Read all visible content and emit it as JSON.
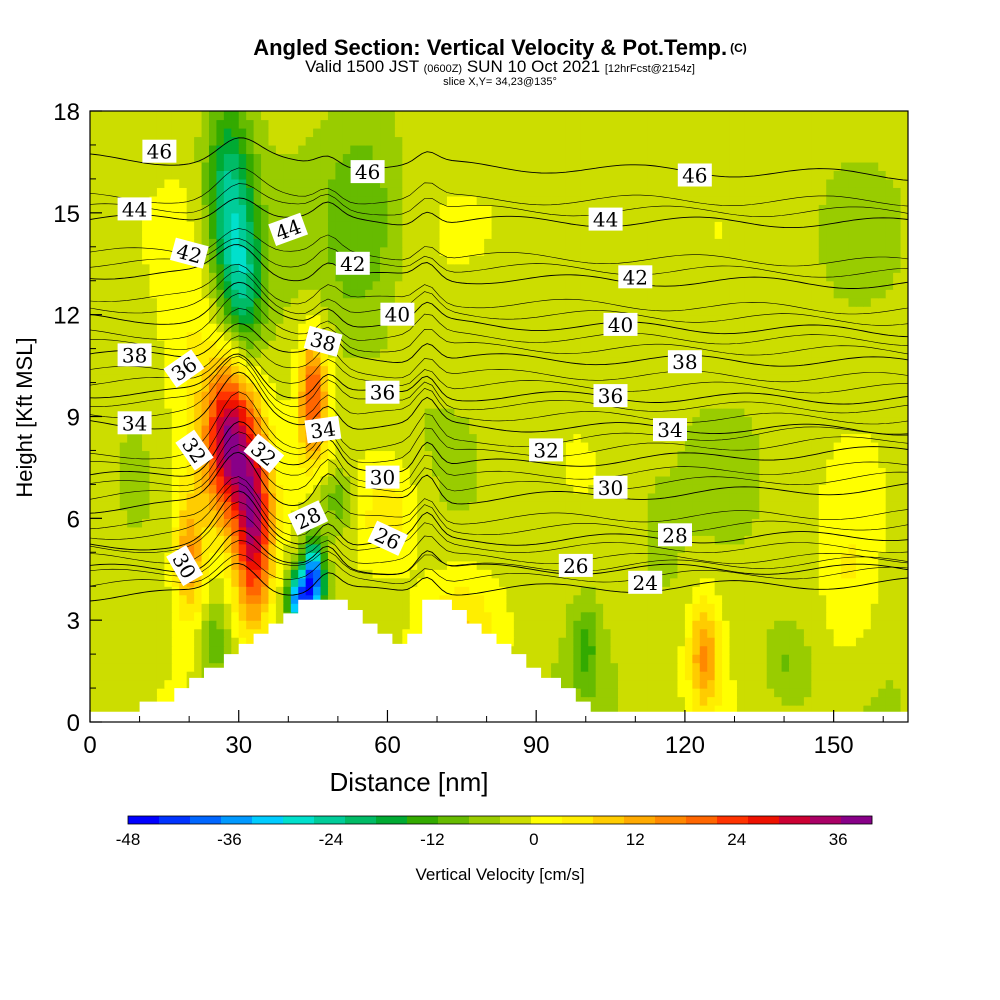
{
  "title": {
    "main": "Angled Section: Vertical Velocity & Pot.Temp.",
    "copyright": "(C)",
    "valid_prefix": "Valid 1500 JST",
    "zulu": "(0600Z)",
    "valid_date": "SUN 10 Oct 2021",
    "forecast": "[12hrFcst@2154z]",
    "slice": "slice X,Y= 34,23@135°"
  },
  "chart_data": {
    "type": "heatmap",
    "xlabel": "Distance [nm]",
    "ylabel": "Height [Kft MSL]",
    "xlim": [
      0,
      165
    ],
    "ylim": [
      0,
      18
    ],
    "xticks": [
      0,
      30,
      60,
      90,
      120,
      150
    ],
    "yticks": [
      0,
      3,
      6,
      9,
      12,
      15,
      18
    ],
    "colorbar": {
      "label": "Vertical Velocity [cm/s]",
      "min": -48,
      "max": 40,
      "step": 4,
      "tick_values": [
        -48,
        -36,
        -24,
        -12,
        0,
        12,
        24,
        36
      ],
      "colors": [
        "#0000ff",
        "#0033ff",
        "#0066ff",
        "#0099ff",
        "#00ccff",
        "#00e0cc",
        "#00cc99",
        "#00bb66",
        "#00aa33",
        "#33aa00",
        "#66bb00",
        "#99cc00",
        "#ccdd00",
        "#ffff00",
        "#ffee00",
        "#ffcc00",
        "#ffaa00",
        "#ff8800",
        "#ff6600",
        "#ff3300",
        "#ee1100",
        "#cc0033",
        "#aa0066",
        "#880088"
      ]
    },
    "terrain": [
      [
        0,
        0.3
      ],
      [
        10,
        0.3
      ],
      [
        10,
        0.6
      ],
      [
        17,
        0.6
      ],
      [
        17,
        1.0
      ],
      [
        20,
        1.0
      ],
      [
        20,
        1.3
      ],
      [
        23,
        1.3
      ],
      [
        23,
        1.6
      ],
      [
        27,
        1.6
      ],
      [
        27,
        2.0
      ],
      [
        30,
        2.0
      ],
      [
        30,
        2.3
      ],
      [
        33,
        2.3
      ],
      [
        33,
        2.6
      ],
      [
        36,
        2.6
      ],
      [
        36,
        2.9
      ],
      [
        39,
        2.9
      ],
      [
        39,
        3.2
      ],
      [
        42,
        3.2
      ],
      [
        42,
        3.6
      ],
      [
        52,
        3.6
      ],
      [
        52,
        3.3
      ],
      [
        55,
        3.3
      ],
      [
        55,
        2.9
      ],
      [
        58,
        2.9
      ],
      [
        58,
        2.6
      ],
      [
        61,
        2.6
      ],
      [
        61,
        2.3
      ],
      [
        64,
        2.3
      ],
      [
        64,
        2.6
      ],
      [
        67,
        2.6
      ],
      [
        67,
        3.6
      ],
      [
        73,
        3.6
      ],
      [
        73,
        3.3
      ],
      [
        76,
        3.3
      ],
      [
        76,
        2.9
      ],
      [
        79,
        2.9
      ],
      [
        79,
        2.6
      ],
      [
        82,
        2.6
      ],
      [
        82,
        2.3
      ],
      [
        85,
        2.3
      ],
      [
        85,
        2.0
      ],
      [
        88,
        2.0
      ],
      [
        88,
        1.6
      ],
      [
        91,
        1.6
      ],
      [
        91,
        1.3
      ],
      [
        95,
        1.3
      ],
      [
        95,
        1.0
      ],
      [
        98,
        1.0
      ],
      [
        98,
        0.6
      ],
      [
        101,
        0.6
      ],
      [
        101,
        0.3
      ],
      [
        165,
        0.3
      ]
    ],
    "isentropes": [
      {
        "theta": 24,
        "y0": 3.7,
        "y1": 4.1,
        "bump": 1.0,
        "label": "24",
        "lx": 112,
        "ly": 4.1
      },
      {
        "theta": 26,
        "y0": 4.5,
        "y1": 4.5,
        "bump": 1.2,
        "label": "26",
        "lx": 98,
        "ly": 4.6
      },
      {
        "theta": 28,
        "y0": 5.2,
        "y1": 5.5,
        "bump": 1.4,
        "label": "28",
        "lx": 118,
        "ly": 5.5
      },
      {
        "theta": 30,
        "y0": 6.3,
        "y1": 6.9,
        "bump": 1.6,
        "label": "30",
        "lx": 105,
        "ly": 6.9
      },
      {
        "theta": 32,
        "y0": 7.2,
        "y1": 8.0,
        "bump": 1.6,
        "label": "32",
        "lx": 92,
        "ly": 8.0
      },
      {
        "theta": 34,
        "y0": 8.8,
        "y1": 8.6,
        "bump": 1.4,
        "label": "34",
        "lx": 117,
        "ly": 8.6
      },
      {
        "theta": 36,
        "y0": 9.7,
        "y1": 9.5,
        "bump": 1.2,
        "label": "36",
        "lx": 105,
        "ly": 9.6
      },
      {
        "theta": 38,
        "y0": 10.8,
        "y1": 10.6,
        "bump": 1.1,
        "label": "38",
        "lx": 120,
        "ly": 10.6
      },
      {
        "theta": 40,
        "y0": 11.9,
        "y1": 11.5,
        "bump": 1.0,
        "label": "40",
        "lx": 107,
        "ly": 11.7
      },
      {
        "theta": 42,
        "y0": 13.2,
        "y1": 12.9,
        "bump": 0.9,
        "label": "42",
        "lx": 110,
        "ly": 13.1
      },
      {
        "theta": 44,
        "y0": 14.8,
        "y1": 14.7,
        "bump": 0.8,
        "label": "44",
        "lx": 104,
        "ly": 14.8
      },
      {
        "theta": 46,
        "y0": 16.6,
        "y1": 16.1,
        "bump": 0.6,
        "label": "46",
        "lx": 122,
        "ly": 16.1
      }
    ],
    "extra_labels": [
      {
        "text": "46",
        "x": 14,
        "y": 16.8,
        "rot": 0
      },
      {
        "text": "44",
        "x": 9,
        "y": 15.1,
        "rot": 0
      },
      {
        "text": "42",
        "x": 20,
        "y": 13.8,
        "rot": 15
      },
      {
        "text": "38",
        "x": 9,
        "y": 10.8,
        "rot": 0
      },
      {
        "text": "36",
        "x": 19,
        "y": 10.4,
        "rot": -35
      },
      {
        "text": "34",
        "x": 9,
        "y": 8.8,
        "rot": 0
      },
      {
        "text": "32",
        "x": 21,
        "y": 8.0,
        "rot": 55
      },
      {
        "text": "30",
        "x": 19,
        "y": 4.6,
        "rot": 60
      },
      {
        "text": "46",
        "x": 56,
        "y": 16.2,
        "rot": 0
      },
      {
        "text": "44",
        "x": 40,
        "y": 14.5,
        "rot": -20
      },
      {
        "text": "42",
        "x": 53,
        "y": 13.5,
        "rot": 0
      },
      {
        "text": "40",
        "x": 62,
        "y": 12.0,
        "rot": 0
      },
      {
        "text": "38",
        "x": 47,
        "y": 11.2,
        "rot": 15
      },
      {
        "text": "36",
        "x": 59,
        "y": 9.7,
        "rot": 0
      },
      {
        "text": "34",
        "x": 47,
        "y": 8.6,
        "rot": -8
      },
      {
        "text": "32",
        "x": 35,
        "y": 7.9,
        "rot": 40
      },
      {
        "text": "30",
        "x": 59,
        "y": 7.2,
        "rot": 0
      },
      {
        "text": "28",
        "x": 44,
        "y": 6.0,
        "rot": -25
      },
      {
        "text": "26",
        "x": 60,
        "y": 5.4,
        "rot": 25
      }
    ],
    "updrafts": [
      {
        "x": 28,
        "y": 8.3,
        "sx": 3.2,
        "sy": 1.6,
        "v": 40
      },
      {
        "x": 33,
        "y": 5.8,
        "sx": 2.6,
        "sy": 2.0,
        "v": 38
      },
      {
        "x": 20,
        "y": 4.8,
        "sx": 2.0,
        "sy": 1.2,
        "v": 16
      },
      {
        "x": 45,
        "y": 9.6,
        "sx": 2.0,
        "sy": 1.3,
        "v": 26
      },
      {
        "x": 21,
        "y": 8.8,
        "sx": 4.5,
        "sy": 3.5,
        "v": 8
      },
      {
        "x": 124,
        "y": 2.0,
        "sx": 2.2,
        "sy": 1.2,
        "v": 18
      },
      {
        "x": 60,
        "y": 6.2,
        "sx": 5.0,
        "sy": 1.2,
        "v": 10
      },
      {
        "x": 75,
        "y": 2.8,
        "sx": 6.0,
        "sy": 1.3,
        "v": 10
      },
      {
        "x": 95,
        "y": 15.0,
        "sx": 10.0,
        "sy": 3.0,
        "v": 4
      },
      {
        "x": 153,
        "y": 4.0,
        "sx": 4.0,
        "sy": 2.0,
        "v": 6
      }
    ],
    "downdrafts": [
      {
        "x": 28,
        "y": 15.5,
        "sx": 3.3,
        "sy": 2.0,
        "v": -22
      },
      {
        "x": 31,
        "y": 12.8,
        "sx": 3.0,
        "sy": 1.6,
        "v": -18
      },
      {
        "x": 45,
        "y": 4.2,
        "sx": 1.6,
        "sy": 0.8,
        "v": -44
      },
      {
        "x": 42,
        "y": 3.6,
        "sx": 1.5,
        "sy": 0.6,
        "v": -36
      },
      {
        "x": 50,
        "y": 6.5,
        "sx": 3.0,
        "sy": 0.7,
        "v": -10
      },
      {
        "x": 55,
        "y": 14.8,
        "sx": 5.5,
        "sy": 2.2,
        "v": -9
      },
      {
        "x": 25,
        "y": 2.4,
        "sx": 2.0,
        "sy": 0.9,
        "v": -10
      },
      {
        "x": 100,
        "y": 2.2,
        "sx": 2.0,
        "sy": 1.0,
        "v": -10
      },
      {
        "x": 140,
        "y": 1.8,
        "sx": 3.0,
        "sy": 0.8,
        "v": -6
      },
      {
        "x": 115,
        "y": 5.5,
        "sx": 2.5,
        "sy": 1.0,
        "v": -4
      }
    ]
  }
}
